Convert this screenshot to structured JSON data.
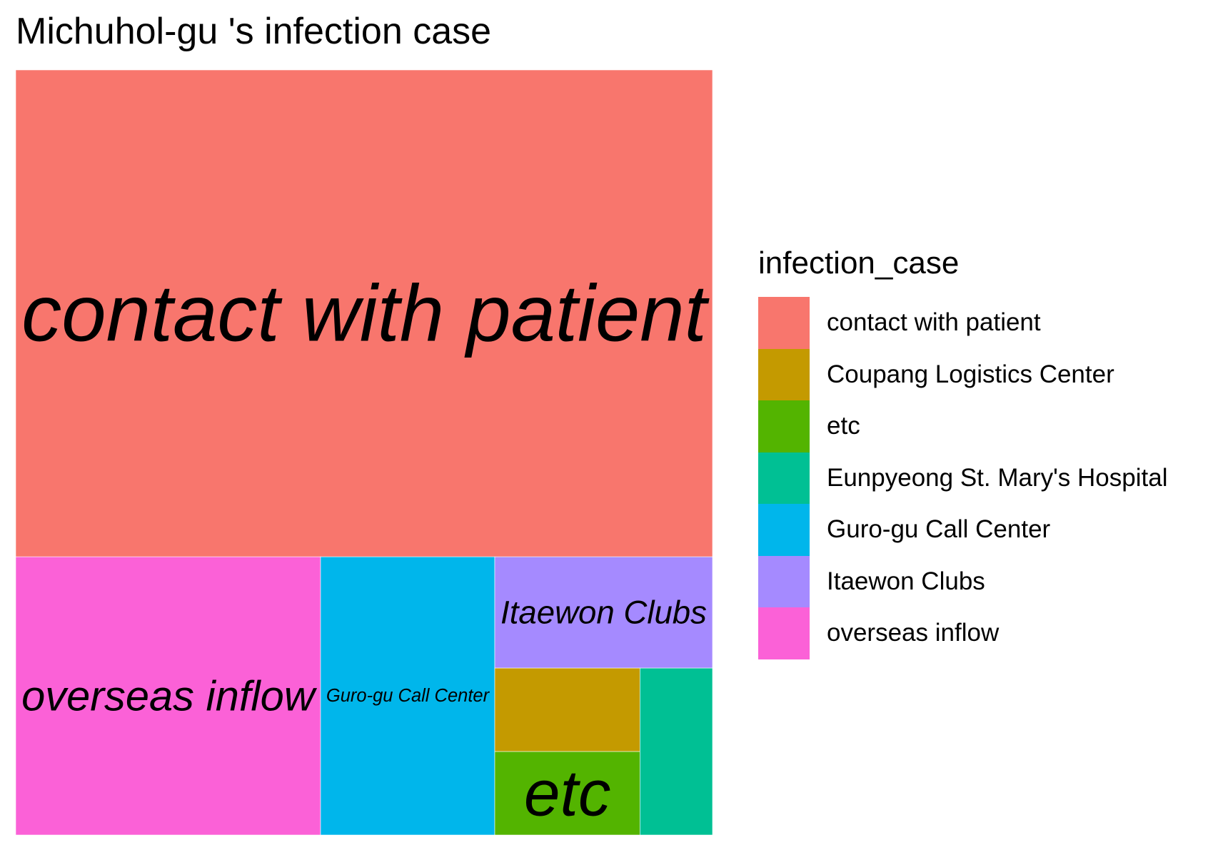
{
  "chart_data": {
    "type": "treemap",
    "title": "Michuhol-gu 's infection case",
    "legend_title": "infection_case",
    "legend_position": "right",
    "categories": [
      "contact with patient",
      "Coupang Logistics Center",
      "etc",
      "Eunpyeong St. Mary's Hospital",
      "Guro-gu Call Center",
      "Itaewon Clubs",
      "overseas inflow"
    ],
    "values": [
      28,
      1,
      1,
      1,
      4,
      2,
      7
    ],
    "colors": [
      "#F8766D",
      "#C49A00",
      "#53B400",
      "#00C094",
      "#00B6EB",
      "#A58AFF",
      "#FB61D7"
    ],
    "tile_labels": [
      "contact with patient",
      "",
      "etc",
      "",
      "Guro-gu Call Center",
      "Itaewon Clubs",
      "overseas inflow"
    ]
  }
}
